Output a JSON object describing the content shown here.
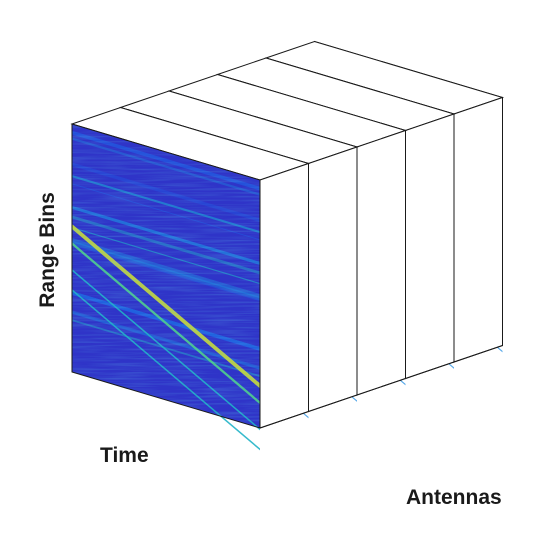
{
  "labels": {
    "range_bins": "Range Bins",
    "time": "Time",
    "antennas": "Antennas"
  },
  "colors": {
    "background": "#ffffff",
    "frame": "#1a1a1a",
    "colormap": [
      "#3a1fa3",
      "#2f34c8",
      "#2159e0",
      "#1d8be0",
      "#20b2c6",
      "#4fcf8a",
      "#c8dc3a"
    ]
  },
  "figure": {
    "type": "radar data cube",
    "antenna_slices": 6
  }
}
